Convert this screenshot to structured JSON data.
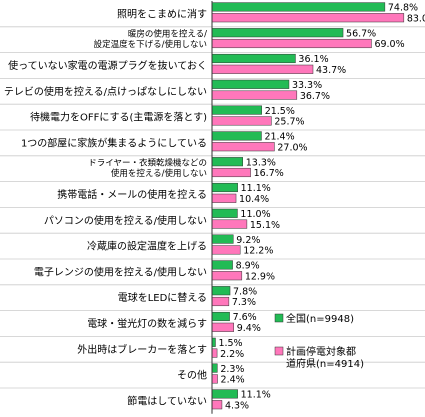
{
  "colors": {
    "national": "#22bb55",
    "planned": "#ff77bb",
    "bar_stroke": "#333333",
    "grid": "#cccccc",
    "axis": "#333333"
  },
  "chart_data": {
    "type": "bar",
    "orientation": "horizontal",
    "unit": "%",
    "xlim": [
      0,
      90
    ],
    "grid": true,
    "legend_position": "bottom-right",
    "categories": [
      [
        "照明をこまめに消す"
      ],
      [
        "暖房の使用を控える/",
        "設定温度を下げる/使用しない"
      ],
      [
        "使っていない家電の電源プラグを抜いておく"
      ],
      [
        "テレビの使用を控える/点けっぱなしにしない"
      ],
      [
        "待機電力をOFFにする(主電源を落とす)"
      ],
      [
        "1つの部屋に家族が集まるようにしている"
      ],
      [
        "ドライヤー・衣類乾燥機などの",
        "使用を控える/使用しない"
      ],
      [
        "携帯電話・メールの使用を控える"
      ],
      [
        "パソコンの使用を控える/使用しない"
      ],
      [
        "冷蔵庫の設定温度を上げる"
      ],
      [
        "電子レンジの使用を控える/使用しない"
      ],
      [
        "電球をLEDに替える"
      ],
      [
        "電球・蛍光灯の数を減らす"
      ],
      [
        "外出時はブレーカーを落とす"
      ],
      [
        "その他"
      ],
      [
        "節電はしていない"
      ]
    ],
    "series": [
      {
        "name": "全国(n=9948)",
        "values": [
          74.8,
          56.7,
          36.1,
          33.3,
          21.5,
          21.4,
          13.3,
          11.1,
          11.0,
          9.2,
          8.9,
          7.8,
          7.6,
          1.5,
          2.3,
          11.1
        ]
      },
      {
        "name": "計画停電対象都道府県(n=4914)",
        "values": [
          83.0,
          69.0,
          43.7,
          36.7,
          25.7,
          27.0,
          16.7,
          10.4,
          15.1,
          12.2,
          12.9,
          7.3,
          9.4,
          2.2,
          2.4,
          4.3
        ]
      }
    ],
    "legend_lines": [
      [
        "全国(n=9948)"
      ],
      [
        "計画停電対象都",
        "道府県(n=4914)"
      ]
    ]
  }
}
